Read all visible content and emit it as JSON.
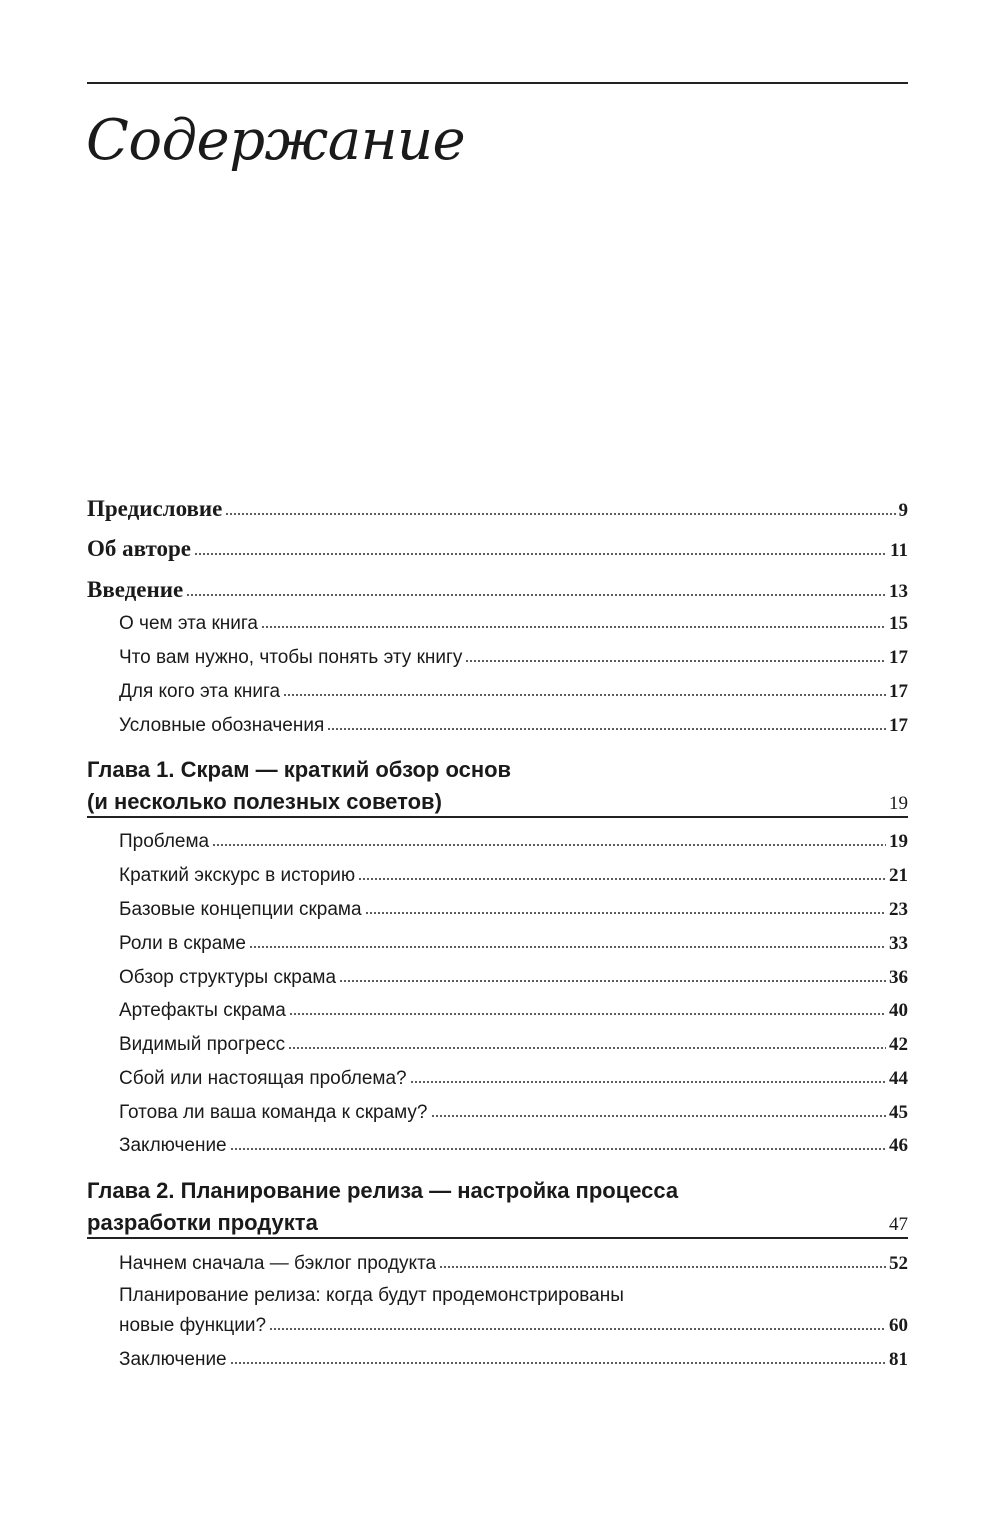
{
  "title": "Содержание",
  "front": [
    {
      "label": "Предисловие",
      "page": "9"
    },
    {
      "label": "Об авторе",
      "page": "11"
    },
    {
      "label": "Введение",
      "page": "13"
    }
  ],
  "intro_sections": [
    {
      "label": "О чем эта книга",
      "page": "15"
    },
    {
      "label": "Что вам нужно, чтобы понять эту книгу",
      "page": "17"
    },
    {
      "label": "Для кого эта книга",
      "page": "17"
    },
    {
      "label": "Условные обозначения",
      "page": "17"
    }
  ],
  "chapter1": {
    "title_line1": "Глава 1. Скрам — краткий обзор основ",
    "title_line2": "(и несколько полезных советов)",
    "page": "19",
    "sections": [
      {
        "label": "Проблема",
        "page": "19"
      },
      {
        "label": "Краткий экскурс в историю",
        "page": "21"
      },
      {
        "label": "Базовые концепции скрама",
        "page": "23"
      },
      {
        "label": "Роли в скраме",
        "page": "33"
      },
      {
        "label": "Обзор структуры скрама",
        "page": "36"
      },
      {
        "label": "Артефакты скрама",
        "page": "40"
      },
      {
        "label": "Видимый прогресс",
        "page": "42"
      },
      {
        "label": "Сбой или настоящая проблема?",
        "page": "44"
      },
      {
        "label": "Готова ли ваша команда к скраму?",
        "page": "45"
      },
      {
        "label": "Заключение",
        "page": "46"
      }
    ]
  },
  "chapter2": {
    "title_line1": "Глава 2. Планирование релиза — настройка процесса",
    "title_line2": "разработки продукта",
    "page": "47",
    "sections": [
      {
        "label": "Начнем сначала — бэклог продукта",
        "page": "52"
      },
      {
        "label_line1": "Планирование релиза: когда будут продемонстрированы",
        "label_line2": "новые функции?",
        "page": "60"
      },
      {
        "label": "Заключение",
        "page": "81"
      }
    ]
  }
}
